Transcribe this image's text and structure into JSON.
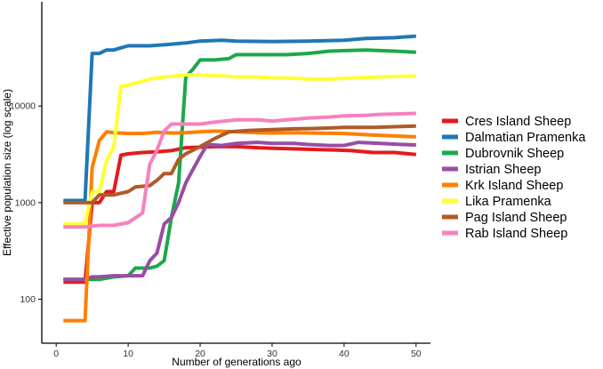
{
  "chart_data": {
    "type": "line",
    "title": "",
    "xlabel": "Number of generations ago",
    "ylabel": "Effective population size (log scale)",
    "xlim": [
      -2,
      52
    ],
    "ylim": [
      35,
      120000
    ],
    "yscale": "log",
    "x_ticks": [
      0,
      10,
      20,
      30,
      40,
      50
    ],
    "x_tick_labels": [
      "0",
      "10",
      "20",
      "30",
      "40",
      "50"
    ],
    "y_ticks": [
      100,
      1000,
      10000
    ],
    "y_tick_labels": [
      "100",
      "1000",
      "10000"
    ],
    "legend_position": "right",
    "series": [
      {
        "name": "Cres Island Sheep",
        "color": "#E41A1C",
        "points": [
          [
            1,
            150
          ],
          [
            4,
            150
          ],
          [
            5,
            1000
          ],
          [
            6,
            1000
          ],
          [
            7,
            1300
          ],
          [
            8,
            1300
          ],
          [
            9,
            3100
          ],
          [
            10,
            3200
          ],
          [
            12,
            3300
          ],
          [
            14,
            3350
          ],
          [
            16,
            3450
          ],
          [
            18,
            3700
          ],
          [
            20,
            3750
          ],
          [
            22,
            3800
          ],
          [
            25,
            3800
          ],
          [
            28,
            3700
          ],
          [
            30,
            3650
          ],
          [
            33,
            3600
          ],
          [
            36,
            3550
          ],
          [
            39,
            3500
          ],
          [
            41,
            3450
          ],
          [
            44,
            3300
          ],
          [
            47,
            3300
          ],
          [
            50,
            3150
          ]
        ]
      },
      {
        "name": "Dalmatian Pramenka",
        "color": "#1F78B4",
        "points": [
          [
            1,
            1050
          ],
          [
            4,
            1050
          ],
          [
            5,
            35000
          ],
          [
            6,
            35000
          ],
          [
            7,
            38000
          ],
          [
            8,
            38000
          ],
          [
            9,
            40000
          ],
          [
            10,
            42000
          ],
          [
            13,
            42000
          ],
          [
            15,
            43000
          ],
          [
            18,
            45000
          ],
          [
            20,
            47000
          ],
          [
            23,
            48000
          ],
          [
            25,
            47000
          ],
          [
            30,
            46500
          ],
          [
            35,
            47000
          ],
          [
            40,
            48000
          ],
          [
            43,
            50000
          ],
          [
            47,
            51000
          ],
          [
            50,
            53000
          ]
        ]
      },
      {
        "name": "Dubrovnik Sheep",
        "color": "#1CA84A",
        "points": [
          [
            1,
            160
          ],
          [
            4,
            160
          ],
          [
            5,
            160
          ],
          [
            6,
            160
          ],
          [
            8,
            170
          ],
          [
            10,
            175
          ],
          [
            11,
            210
          ],
          [
            12,
            210
          ],
          [
            13,
            210
          ],
          [
            14,
            220
          ],
          [
            15,
            250
          ],
          [
            16,
            700
          ],
          [
            17,
            1600
          ],
          [
            18,
            20000
          ],
          [
            19,
            24000
          ],
          [
            20,
            30000
          ],
          [
            22,
            30000
          ],
          [
            24,
            31000
          ],
          [
            25,
            34000
          ],
          [
            28,
            34000
          ],
          [
            32,
            34000
          ],
          [
            35,
            35000
          ],
          [
            38,
            37000
          ],
          [
            43,
            38000
          ],
          [
            47,
            37000
          ],
          [
            50,
            36000
          ]
        ]
      },
      {
        "name": "Istrian Sheep",
        "color": "#984EA3",
        "points": [
          [
            1,
            160
          ],
          [
            4,
            160
          ],
          [
            5,
            170
          ],
          [
            6,
            170
          ],
          [
            8,
            175
          ],
          [
            11,
            175
          ],
          [
            12,
            175
          ],
          [
            13,
            250
          ],
          [
            14,
            300
          ],
          [
            15,
            600
          ],
          [
            16,
            700
          ],
          [
            17,
            1000
          ],
          [
            18,
            1600
          ],
          [
            19,
            2200
          ],
          [
            20,
            3000
          ],
          [
            21,
            4000
          ],
          [
            23,
            3900
          ],
          [
            25,
            4100
          ],
          [
            28,
            4200
          ],
          [
            30,
            4100
          ],
          [
            33,
            4100
          ],
          [
            35,
            4000
          ],
          [
            38,
            3900
          ],
          [
            40,
            3900
          ],
          [
            42,
            4200
          ],
          [
            45,
            4100
          ],
          [
            48,
            4000
          ],
          [
            50,
            3950
          ]
        ]
      },
      {
        "name": "Krk Island Sheep",
        "color": "#FF7F00",
        "points": [
          [
            1,
            60
          ],
          [
            4,
            60
          ],
          [
            5,
            2300
          ],
          [
            6,
            4400
          ],
          [
            7,
            5400
          ],
          [
            8,
            5300
          ],
          [
            10,
            5200
          ],
          [
            12,
            5200
          ],
          [
            14,
            5350
          ],
          [
            16,
            5250
          ],
          [
            18,
            5300
          ],
          [
            20,
            5400
          ],
          [
            22,
            5500
          ],
          [
            25,
            5400
          ],
          [
            28,
            5300
          ],
          [
            30,
            5250
          ],
          [
            33,
            5300
          ],
          [
            36,
            5250
          ],
          [
            40,
            5200
          ],
          [
            44,
            5000
          ],
          [
            47,
            4900
          ],
          [
            50,
            4800
          ]
        ]
      },
      {
        "name": "Lika Pramenka",
        "color": "#FFFF33",
        "points": [
          [
            1,
            600
          ],
          [
            4,
            600
          ],
          [
            5,
            1300
          ],
          [
            6,
            1300
          ],
          [
            7,
            2700
          ],
          [
            8,
            3800
          ],
          [
            9,
            16000
          ],
          [
            10,
            16500
          ],
          [
            12,
            18000
          ],
          [
            13,
            19000
          ],
          [
            15,
            20000
          ],
          [
            18,
            21000
          ],
          [
            20,
            21000
          ],
          [
            23,
            20500
          ],
          [
            25,
            20000
          ],
          [
            28,
            20000
          ],
          [
            30,
            19500
          ],
          [
            33,
            19500
          ],
          [
            35,
            19000
          ],
          [
            38,
            19000
          ],
          [
            41,
            19500
          ],
          [
            45,
            20000
          ],
          [
            50,
            20500
          ]
        ]
      },
      {
        "name": "Pag Island Sheep",
        "color": "#B15928",
        "points": [
          [
            1,
            1000
          ],
          [
            4,
            1000
          ],
          [
            5,
            1000
          ],
          [
            6,
            1200
          ],
          [
            8,
            1200
          ],
          [
            10,
            1300
          ],
          [
            11,
            1450
          ],
          [
            13,
            1500
          ],
          [
            14,
            1700
          ],
          [
            15,
            2000
          ],
          [
            16,
            2000
          ],
          [
            17,
            2800
          ],
          [
            18,
            3200
          ],
          [
            20,
            3800
          ],
          [
            22,
            4600
          ],
          [
            24,
            5400
          ],
          [
            27,
            5600
          ],
          [
            30,
            5700
          ],
          [
            33,
            5800
          ],
          [
            36,
            5850
          ],
          [
            40,
            6000
          ],
          [
            44,
            6000
          ],
          [
            47,
            6100
          ],
          [
            50,
            6200
          ]
        ]
      },
      {
        "name": "Rab Island Sheep",
        "color": "#F781BF",
        "points": [
          [
            1,
            560
          ],
          [
            4,
            560
          ],
          [
            6,
            580
          ],
          [
            8,
            580
          ],
          [
            10,
            620
          ],
          [
            12,
            780
          ],
          [
            13,
            2500
          ],
          [
            14,
            3500
          ],
          [
            15,
            5500
          ],
          [
            16,
            6500
          ],
          [
            18,
            6500
          ],
          [
            20,
            6500
          ],
          [
            22,
            6800
          ],
          [
            25,
            7200
          ],
          [
            28,
            7200
          ],
          [
            30,
            7000
          ],
          [
            33,
            7300
          ],
          [
            35,
            7500
          ],
          [
            38,
            7700
          ],
          [
            40,
            7900
          ],
          [
            43,
            8000
          ],
          [
            45,
            8200
          ],
          [
            48,
            8300
          ],
          [
            50,
            8400
          ]
        ]
      }
    ]
  }
}
